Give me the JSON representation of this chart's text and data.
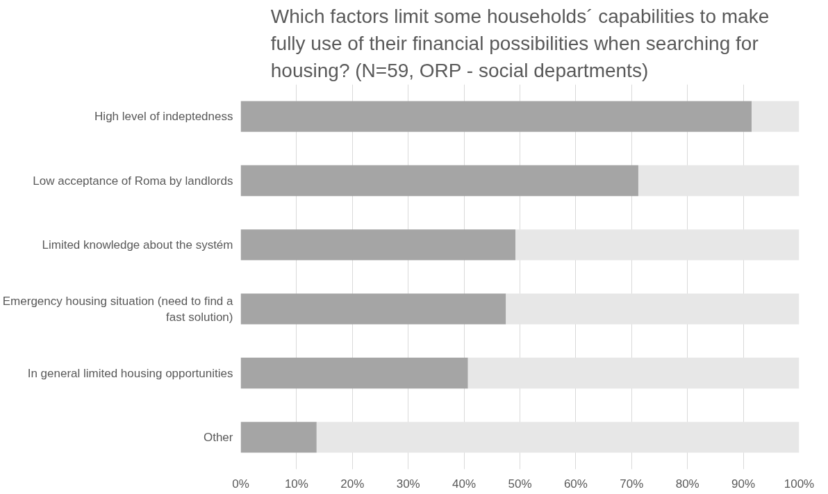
{
  "chart_data": {
    "type": "bar",
    "orientation": "horizontal",
    "stacked": true,
    "title": "Which factors limit some households´ capabilities to make\nfully use of their financial possibilities when searching for\nhousing? (N=59, ORP - social departments)",
    "categories": [
      "High level of indeptedness",
      "Low acceptance of Roma by landlords",
      "Limited knowledge about the systém",
      "Emergency housing situation (need to find a fast solution)",
      "In general limited housing opportunities",
      "Other"
    ],
    "series": [
      {
        "color": "#a5a5a5",
        "values": [
          91.5,
          71.2,
          49.2,
          47.5,
          40.7,
          13.6
        ]
      },
      {
        "color": "#e7e7e7",
        "values": [
          8.5,
          28.8,
          50.8,
          52.5,
          59.3,
          86.4
        ]
      }
    ],
    "xlim": [
      0,
      100
    ],
    "xticks": [
      {
        "value": 0,
        "label": "0%"
      },
      {
        "value": 10,
        "label": "10%"
      },
      {
        "value": 20,
        "label": "20%"
      },
      {
        "value": 30,
        "label": "30%"
      },
      {
        "value": 40,
        "label": "40%"
      },
      {
        "value": 50,
        "label": "50%"
      },
      {
        "value": 60,
        "label": "60%"
      },
      {
        "value": 70,
        "label": "70%"
      },
      {
        "value": 80,
        "label": "80%"
      },
      {
        "value": 90,
        "label": "90%"
      },
      {
        "value": 100,
        "label": "100%"
      }
    ],
    "grid": "x"
  }
}
